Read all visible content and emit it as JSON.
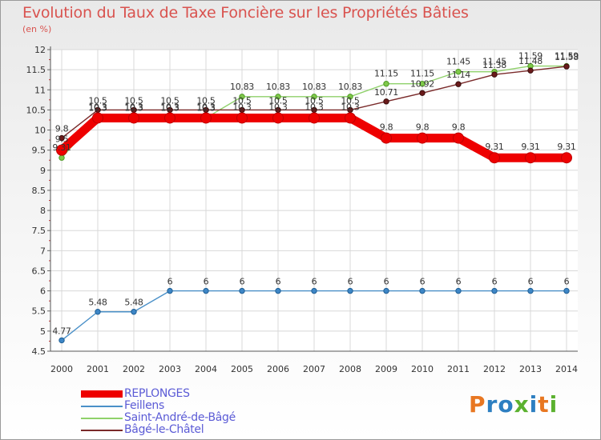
{
  "header": {
    "title": "Evolution du Taux de Taxe Foncière sur les Propriétés Bâties",
    "unit": "(en %)"
  },
  "brand": {
    "name": "Proxiti",
    "colors": [
      "#e87722",
      "#2d7fc1",
      "#5bb12f"
    ]
  },
  "chart_data": {
    "type": "line",
    "title": "Evolution du Taux de Taxe Foncière sur les Propriétés Bâties",
    "ylabel": "(en %)",
    "xlabel": "",
    "x": [
      "2000",
      "2001",
      "2002",
      "2003",
      "2004",
      "2005",
      "2006",
      "2007",
      "2008",
      "2009",
      "2010",
      "2011",
      "2012",
      "2013",
      "2014"
    ],
    "ylim": [
      4.5,
      12
    ],
    "yticks": [
      "4.5",
      "5",
      "5.5",
      "6",
      "6.5",
      "7",
      "7.5",
      "8",
      "8.5",
      "9",
      "9.5",
      "10",
      "10.5",
      "11",
      "11.5",
      "12"
    ],
    "legend_position": "bottom-left",
    "series": [
      {
        "name": "REPLONGES",
        "color": "#ee0000",
        "values": [
          9.5,
          10.3,
          10.3,
          10.3,
          10.3,
          10.3,
          10.3,
          10.3,
          10.3,
          9.8,
          9.8,
          9.8,
          9.31,
          9.31,
          9.31
        ],
        "labels": [
          "9.5",
          "10.3",
          "10.3",
          "10.3",
          "10.3",
          "10.3",
          "10.3",
          "10.3",
          "10.3",
          "9.8",
          "9.8",
          "9.8",
          "9.31",
          "9.31",
          "9.31"
        ]
      },
      {
        "name": "Feillens",
        "color": "#4a90c8",
        "values": [
          4.77,
          5.48,
          5.48,
          6,
          6,
          6,
          6,
          6,
          6,
          6,
          6,
          6,
          6,
          6,
          6
        ],
        "labels": [
          "4.77",
          "5.48",
          "5.48",
          "6",
          "6",
          "6",
          "6",
          "6",
          "6",
          "6",
          "6",
          "6",
          "6",
          "6",
          "6"
        ]
      },
      {
        "name": "Saint-André-de-Bâgé",
        "color": "#8fd16a",
        "values": [
          9.31,
          10.3,
          10.3,
          10.3,
          10.3,
          10.83,
          10.83,
          10.83,
          10.83,
          11.15,
          11.15,
          11.45,
          11.45,
          11.59,
          11.59
        ],
        "labels": [
          "9.31",
          "10.3",
          "10.3",
          "10.3",
          "10.3",
          "10.83",
          "10.83",
          "10.83",
          "10.83",
          "11.15",
          "11.15",
          "11.45",
          "11.45",
          "11.59",
          "11.59"
        ]
      },
      {
        "name": "Bâgé-le-Châtel",
        "color": "#7a2a2a",
        "values": [
          9.8,
          10.5,
          10.5,
          10.5,
          10.5,
          10.5,
          10.5,
          10.5,
          10.5,
          10.71,
          10.92,
          11.14,
          11.38,
          11.48,
          11.58
        ],
        "labels": [
          "9.8",
          "10.5",
          "10.5",
          "10.5",
          "10.5",
          "10.5",
          "10.5",
          "10.5",
          "10.5",
          "10.71",
          "10.92",
          "11.14",
          "11.38",
          "11.48",
          "11.58"
        ]
      }
    ]
  }
}
